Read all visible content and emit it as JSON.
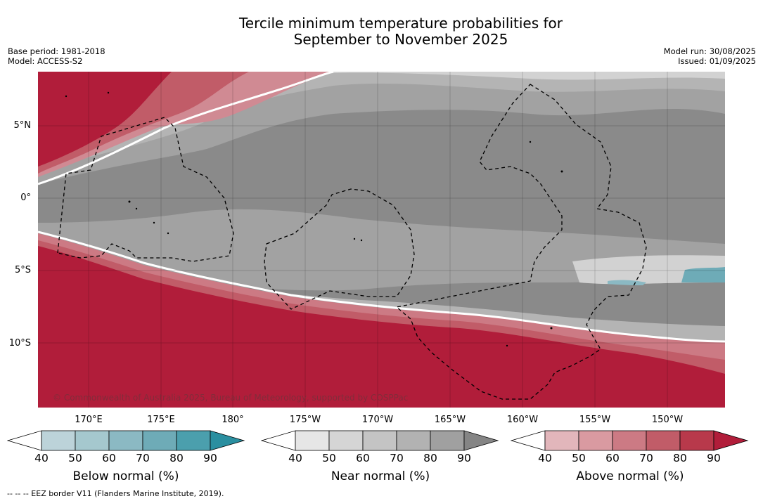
{
  "title_line1": "Tercile minimum temperature probabilities for",
  "title_line2": "September to November 2025",
  "meta_left": {
    "base_period": "Base period: 1981-2018",
    "model": "Model: ACCESS-S2"
  },
  "meta_right": {
    "model_run": "Model run: 30/08/2025",
    "issued": "Issued: 01/09/2025"
  },
  "latitude_labels": [
    "5°N",
    "0°",
    "5°S",
    "10°S"
  ],
  "longitude_labels": [
    "170°E",
    "175°E",
    "180°",
    "175°W",
    "170°W",
    "165°W",
    "160°W",
    "155°W",
    "150°W"
  ],
  "copyright": "© Commonwealth of Australia 2025, Bureau of Meteorology, supported by COSPPac",
  "colorbars": [
    {
      "title": "Below normal (%)",
      "ticks": [
        "40",
        "50",
        "60",
        "70",
        "80",
        "90"
      ],
      "colors": [
        "#ffffff",
        "#bcd3d9",
        "#a5c8ce",
        "#8bb9c3",
        "#6eabb7",
        "#4b9fad",
        "#2a8fa0"
      ]
    },
    {
      "title": "Near normal (%)",
      "ticks": [
        "40",
        "50",
        "60",
        "70",
        "80",
        "90"
      ],
      "colors": [
        "#ffffff",
        "#e6e6e6",
        "#d5d5d5",
        "#c4c4c4",
        "#b2b2b2",
        "#a0a0a0",
        "#858585"
      ]
    },
    {
      "title": "Above normal (%)",
      "ticks": [
        "40",
        "50",
        "60",
        "70",
        "80",
        "90"
      ],
      "colors": [
        "#ffffff",
        "#e2b6bb",
        "#d99aa1",
        "#cc7a84",
        "#c15c68",
        "#b8394b",
        "#b11d3a"
      ]
    }
  ],
  "footnote": "--  --  -- EEZ border V11 (Flanders Marine Institute, 2019)."
}
